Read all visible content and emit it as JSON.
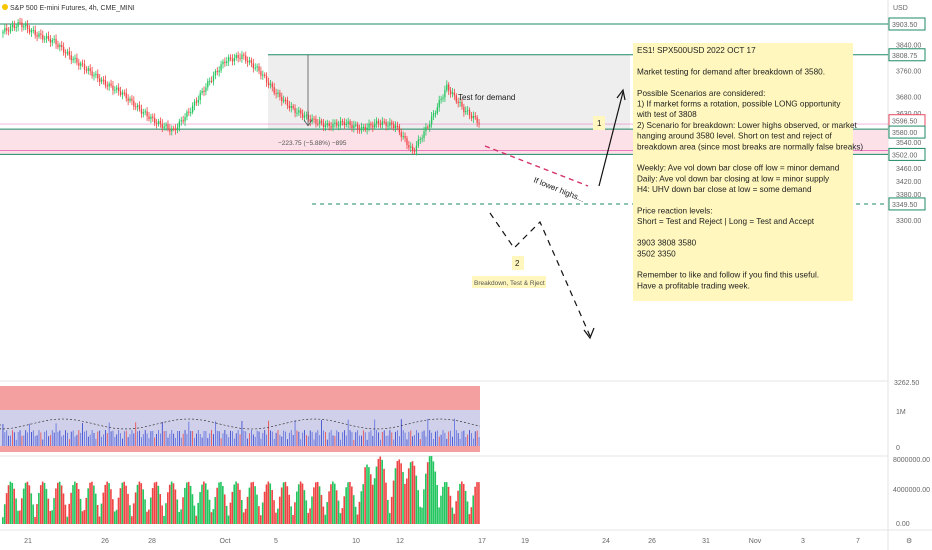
{
  "header": {
    "symbol": "S&P 500 E-mini Futures, 4h, CME_MINI",
    "currency": "USD"
  },
  "colors": {
    "up": "#22c55e",
    "down": "#ef4444",
    "level": "#1b8a66",
    "zone": "#fbd7e2",
    "zone_line": "#e45ab0",
    "note_bg": "#fff7bd",
    "grey_box": "#e8e8e8",
    "dashed_level": "#1b8a66",
    "measure_text": "#4f6fd0",
    "trend_dash": "#d6336c"
  },
  "chart_data": {
    "type": "candlestick",
    "title": "",
    "xlabel": "",
    "ylabel": "",
    "ylim": [
      3300,
      3920
    ],
    "x_ticks": [
      "21",
      "26",
      "28",
      "Oct",
      "5",
      "10",
      "12",
      "17",
      "19",
      "24",
      "26",
      "31",
      "Nov",
      "3",
      "7"
    ],
    "y_ticks": [
      "3840.00",
      "3760.00",
      "3680.00",
      "3630.00",
      "3540.00",
      "3460.00",
      "3420.00",
      "3380.00",
      "3300.00"
    ],
    "price_tags": [
      {
        "label": "3903.50",
        "value": 3903.5,
        "style": "level"
      },
      {
        "label": "3808.75",
        "value": 3808.75,
        "style": "level"
      },
      {
        "label": "3596.50",
        "value": 3596.5,
        "style": "last"
      },
      {
        "label": "3580.00",
        "value": 3580,
        "style": "level"
      },
      {
        "label": "3502.00",
        "value": 3502,
        "style": "level"
      },
      {
        "label": "3349.50",
        "value": 3349.5,
        "style": "level"
      }
    ],
    "levels": [
      3903.5,
      3808.75,
      3580,
      3502
    ],
    "dashed_level": 3349.5,
    "demand_zone": [
      3502,
      3580
    ],
    "measure_label": "−223.75 (−5.88%) −895",
    "annotations": [
      {
        "text": "Test for demand"
      },
      {
        "text": "If lower highs..."
      },
      {
        "text": "1"
      },
      {
        "text": "2"
      },
      {
        "text": "Breakdown, Test & Rject"
      }
    ]
  },
  "note": {
    "lines": [
      "ES1! SPX500USD 2022 OCT 17",
      "",
      "Market testing for demand after breakdown of 3580.",
      "",
      "Possible Scenarios are considered:",
      "1) If market forms a rotation, possible LONG opportunity",
      "with test of 3808",
      "2) Scenario for breakdown: Lower highs observed, or market",
      "hanging around 3580 level. Short on test and reject of",
      "breakdown area (since most breaks are normally false breaks)",
      "",
      "Weekly: Ave vol down bar close off low = minor demand",
      "Daily: Ave vol down bar closing at low = minor supply",
      "H4: UHV down bar close at low = some demand",
      "",
      "Price reaction levels:",
      "Short = Test and Reject    |    Long = Test and Accept",
      "",
      "3903                    3808                    3580",
      "3502                    3350",
      "",
      "Remember to like and follow if you find this useful.",
      "Have a profitable trading week."
    ]
  },
  "indicator_panel": {
    "y_labels": [
      "1M",
      "0"
    ],
    "top_label": "3262.50"
  },
  "volume_panel": {
    "y_labels": [
      "8000000.00",
      "4000000.00",
      "0.00"
    ]
  }
}
